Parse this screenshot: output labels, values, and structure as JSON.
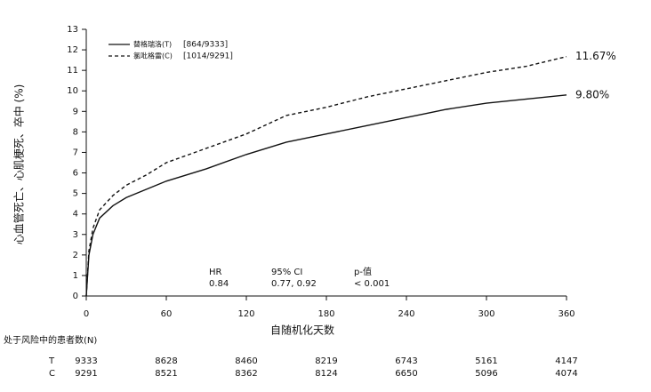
{
  "chart_data": {
    "type": "line",
    "ylabel": "心血管死亡、心肌梗死、卒中 (%)",
    "xlabel": "自随机化天数",
    "x": [
      0,
      2,
      5,
      10,
      20,
      30,
      45,
      60,
      90,
      120,
      150,
      180,
      210,
      240,
      270,
      300,
      330,
      360
    ],
    "series": [
      {
        "name": "替格瑞洛(T)",
        "legend_note": "[864/9333]",
        "color": "#111111",
        "line_style": "solid",
        "end_label": "9.80%",
        "values": [
          0,
          2.0,
          3.0,
          3.8,
          4.4,
          4.8,
          5.2,
          5.6,
          6.2,
          6.9,
          7.5,
          7.9,
          8.3,
          8.7,
          9.1,
          9.4,
          9.6,
          9.8
        ]
      },
      {
        "name": "氯吡格雷(C)",
        "legend_note": "[1014/9291]",
        "color": "#111111",
        "line_style": "dashed",
        "end_label": "11.67%",
        "values": [
          0,
          2.2,
          3.3,
          4.2,
          4.9,
          5.4,
          5.9,
          6.5,
          7.2,
          7.9,
          8.8,
          9.2,
          9.7,
          10.1,
          10.5,
          10.9,
          11.2,
          11.67
        ]
      }
    ],
    "xlim": [
      0,
      360
    ],
    "xticks": [
      0,
      60,
      120,
      180,
      240,
      300,
      360
    ],
    "ylim": [
      0,
      13
    ],
    "yticks": [
      0,
      1,
      2,
      3,
      4,
      5,
      6,
      7,
      8,
      9,
      10,
      11,
      12,
      13
    ],
    "stats": {
      "headers": [
        "HR",
        "95% CI",
        "p-值"
      ],
      "values": [
        "0.84",
        "0.77, 0.92",
        "< 0.001"
      ]
    },
    "risk_table": {
      "title": "处于风险中的患者数(N)",
      "rows": [
        {
          "name": "T",
          "values": [
            "9333",
            "8628",
            "8460",
            "8219",
            "6743",
            "5161",
            "4147"
          ]
        },
        {
          "name": "C",
          "values": [
            "9291",
            "8521",
            "8362",
            "8124",
            "6650",
            "5096",
            "4074"
          ]
        }
      ]
    }
  }
}
